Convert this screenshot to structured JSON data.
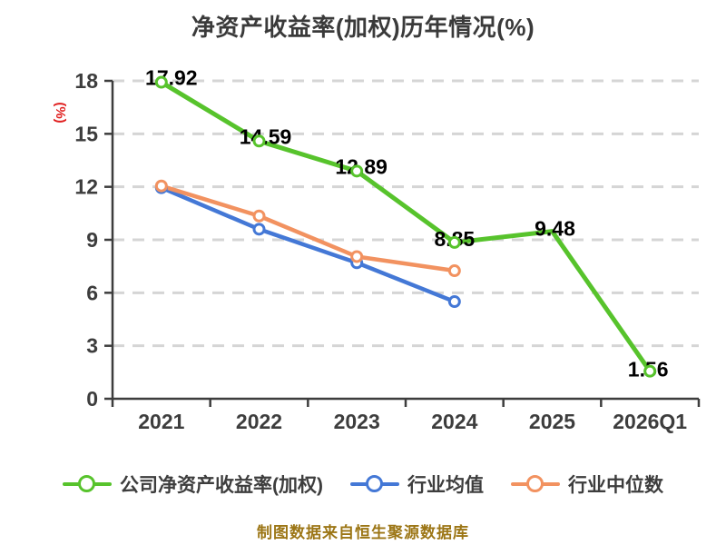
{
  "title": "净资产收益率(加权)历年情况(%)",
  "y_axis_label": "(%)",
  "footer": "制图数据来自恒生聚源数据库",
  "legend": {
    "items": [
      {
        "label": "公司净资产收益率(加权)",
        "color": "#57c32c"
      },
      {
        "label": "行业均值",
        "color": "#4478d6"
      },
      {
        "label": "行业中位数",
        "color": "#f29260"
      }
    ]
  },
  "colors": {
    "title": "#3a3a3a",
    "axis": "#3d3d3d",
    "grid": "#d5d5d5",
    "tick_label": "#3d3d3d",
    "data_label": "#000000",
    "y_axis_unit": "#e01e1e",
    "footer": "#9c7616",
    "company_line": "#57c32c",
    "industry_avg_line": "#4478d6",
    "industry_median_line": "#f29260"
  },
  "chart_data": {
    "type": "line",
    "title": "净资产收益率(加权)历年情况(%)",
    "ylabel": "(%)",
    "categories": [
      "2021",
      "2022",
      "2023",
      "2024",
      "2025",
      "2026Q1"
    ],
    "ylim": [
      0,
      18
    ],
    "yticks": [
      0,
      3,
      6,
      9,
      12,
      15,
      18
    ],
    "grid": "dashed-horizontal",
    "legend_position": "bottom",
    "series": [
      {
        "name": "公司净资产收益率(加权)",
        "color_key": "company_line",
        "values": [
          17.92,
          14.59,
          12.89,
          8.85,
          9.48,
          1.56
        ],
        "data_labels": [
          "17.92",
          "14.59",
          "12.89",
          "8.85",
          "9.48",
          "1.56"
        ],
        "label_offsets": [
          [
            11,
            3
          ],
          [
            7,
            3
          ],
          [
            5,
            3
          ],
          [
            0,
            4
          ],
          [
            3,
            5
          ],
          [
            -2,
            6
          ]
        ],
        "marker_visible": [
          true,
          true,
          true,
          true,
          false,
          true
        ]
      },
      {
        "name": "行业均值",
        "color_key": "industry_avg_line",
        "values": [
          11.95,
          9.6,
          7.7,
          5.5,
          null,
          null
        ]
      },
      {
        "name": "行业中位数",
        "color_key": "industry_median_line",
        "values": [
          12.05,
          10.35,
          8.05,
          7.25,
          null,
          null
        ]
      }
    ]
  }
}
